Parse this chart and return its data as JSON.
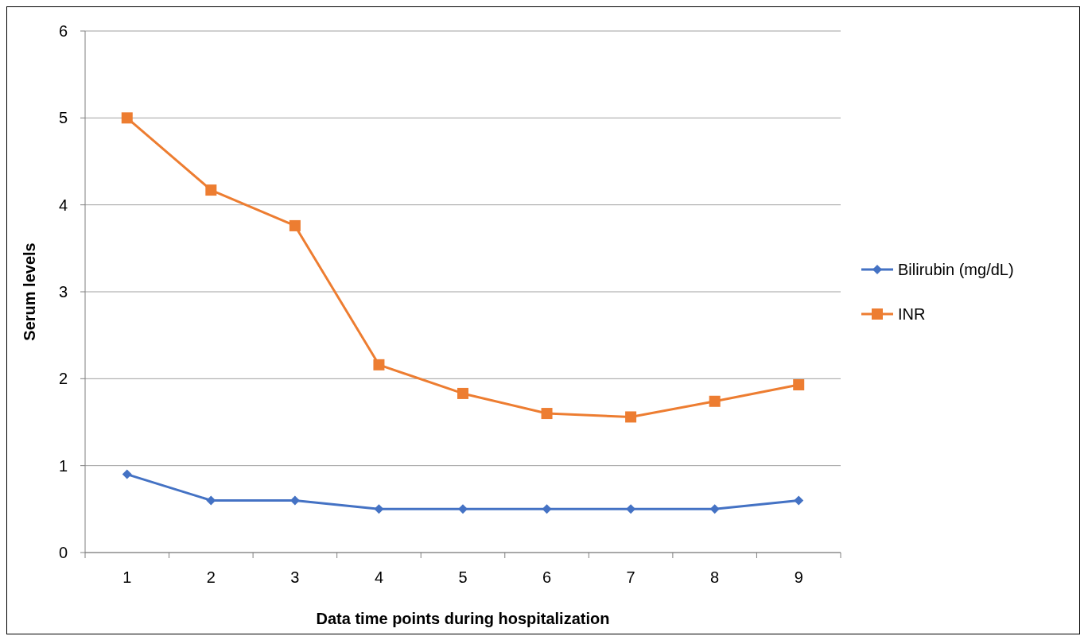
{
  "chart_data": {
    "type": "line",
    "xlabel": "Data time points during hospitalization",
    "ylabel": "Serum levels",
    "categories": [
      "1",
      "2",
      "3",
      "4",
      "5",
      "6",
      "7",
      "8",
      "9"
    ],
    "series": [
      {
        "name": "Bilirubin (mg/dL)",
        "color": "#4472c4",
        "marker": "diamond",
        "values": [
          0.9,
          0.6,
          0.6,
          0.5,
          0.5,
          0.5,
          0.5,
          0.5,
          0.6
        ]
      },
      {
        "name": "INR",
        "color": "#ed7d31",
        "marker": "square",
        "values": [
          5,
          4.17,
          3.76,
          2.16,
          1.83,
          1.6,
          1.56,
          1.74,
          1.93
        ]
      }
    ],
    "ylim": [
      0,
      6
    ],
    "yticks": [
      0,
      1,
      2,
      3,
      4,
      5,
      6
    ],
    "grid": "y",
    "legend": "right"
  }
}
